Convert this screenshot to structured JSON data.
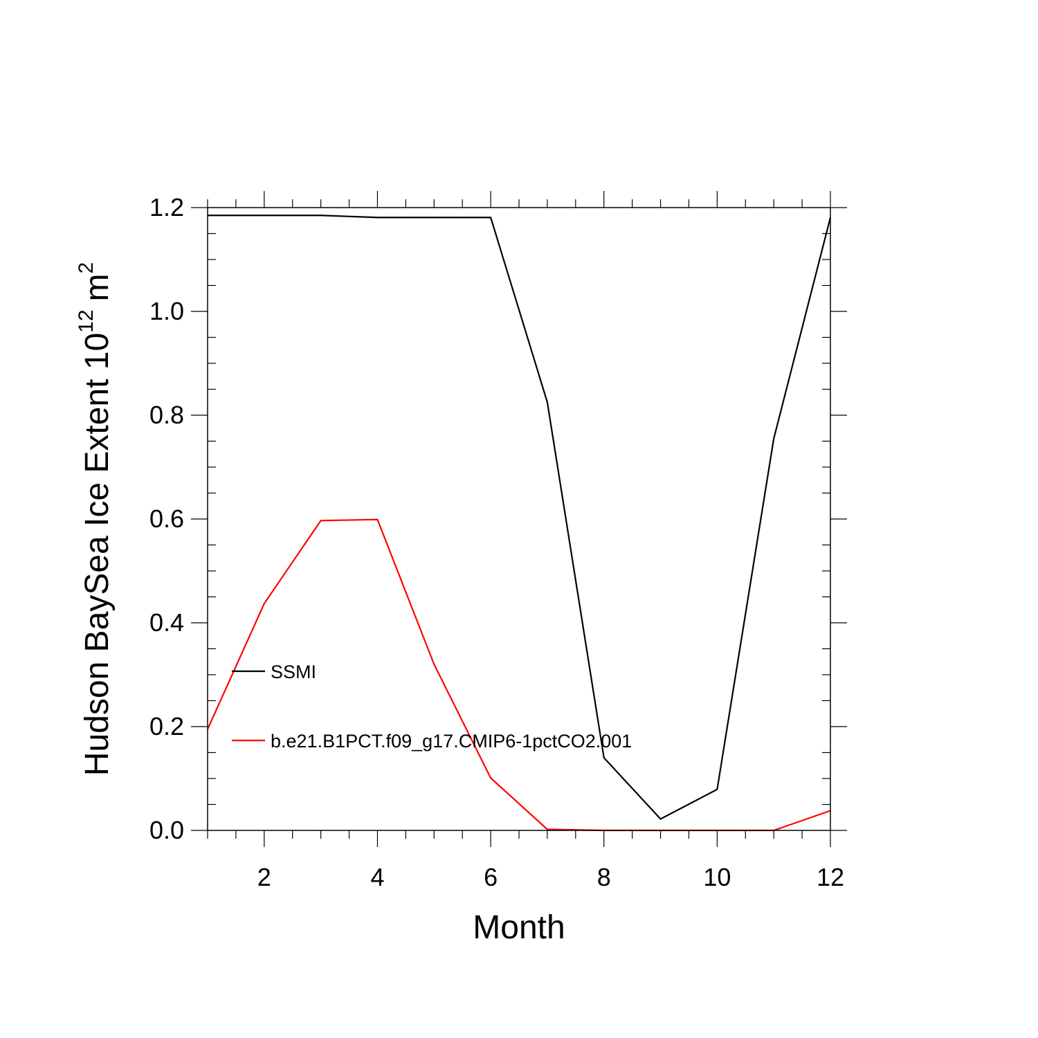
{
  "chart_data": {
    "type": "line",
    "title": "",
    "xlabel": "Month",
    "ylabel_main": "Hudson BaySea Ice Extent 10",
    "ylabel_exp": "12",
    "ylabel_unit": "m",
    "ylabel_unit_exp": "2",
    "xlim": [
      1,
      12
    ],
    "ylim": [
      0.0,
      1.2
    ],
    "x_ticks": [
      2,
      4,
      6,
      8,
      10,
      12
    ],
    "x_tick_labels": [
      "2",
      "4",
      "6",
      "8",
      "10",
      "12"
    ],
    "y_ticks": [
      0.0,
      0.2,
      0.4,
      0.6,
      0.8,
      1.0,
      1.2
    ],
    "y_tick_labels": [
      "0.0",
      "0.2",
      "0.4",
      "0.6",
      "0.8",
      "1.0",
      "1.2"
    ],
    "x": [
      1,
      2,
      3,
      4,
      5,
      6,
      7,
      8,
      9,
      10,
      11,
      12
    ],
    "grid": false,
    "legend_position": "left",
    "series": [
      {
        "name": "SSMI",
        "color": "#000000",
        "values": [
          1.185,
          1.185,
          1.185,
          1.181,
          1.181,
          1.181,
          0.825,
          0.14,
          0.022,
          0.079,
          0.755,
          1.181
        ]
      },
      {
        "name": "b.e21.B1PCT.f09_g17.CMIP6-1pctCO2.001",
        "color": "#ff0000",
        "values": [
          0.195,
          0.437,
          0.597,
          0.599,
          0.32,
          0.101,
          0.002,
          0.0,
          0.0,
          0.0,
          0.0,
          0.038
        ]
      }
    ]
  }
}
